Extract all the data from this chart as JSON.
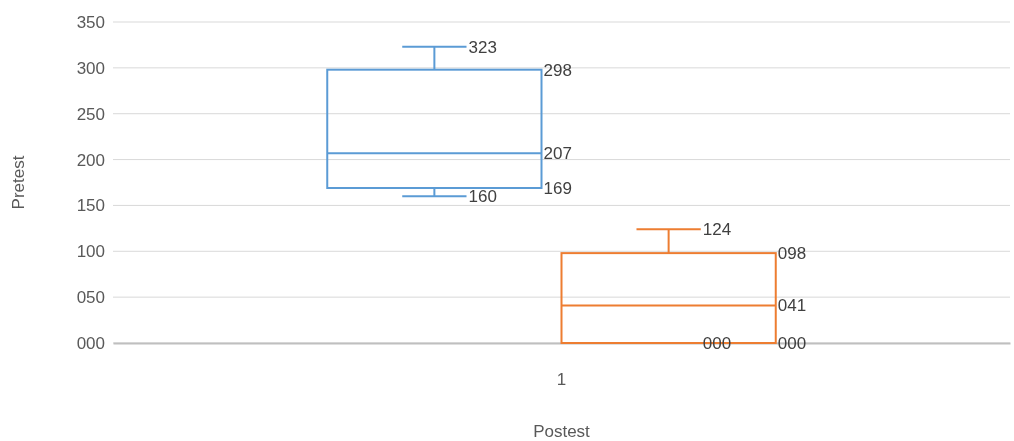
{
  "chart_data": {
    "type": "box",
    "xlabel": "Postest",
    "ylabel": "Pretest",
    "categories": [
      "1"
    ],
    "ylim": [
      0,
      350
    ],
    "yticks": [
      {
        "value": 0,
        "label": "000"
      },
      {
        "value": 50,
        "label": "050"
      },
      {
        "value": 100,
        "label": "100"
      },
      {
        "value": 150,
        "label": "150"
      },
      {
        "value": 200,
        "label": "200"
      },
      {
        "value": 250,
        "label": "250"
      },
      {
        "value": 300,
        "label": "300"
      },
      {
        "value": 350,
        "label": "350"
      }
    ],
    "grid": "y",
    "series": [
      {
        "color": "#5b9bd5",
        "boxes": [
          {
            "low": 160,
            "q1": 169,
            "median": 207,
            "q3": 298,
            "high": 323
          }
        ],
        "value_labels": [
          [
            "323",
            "298",
            "207",
            "169",
            "160"
          ]
        ]
      },
      {
        "color": "#ed7d31",
        "boxes": [
          {
            "low": 0,
            "q1": 0,
            "median": 41,
            "q3": 98,
            "high": 124
          }
        ],
        "value_labels": [
          [
            "124",
            "098",
            "041",
            "000",
            "000"
          ]
        ]
      }
    ]
  }
}
